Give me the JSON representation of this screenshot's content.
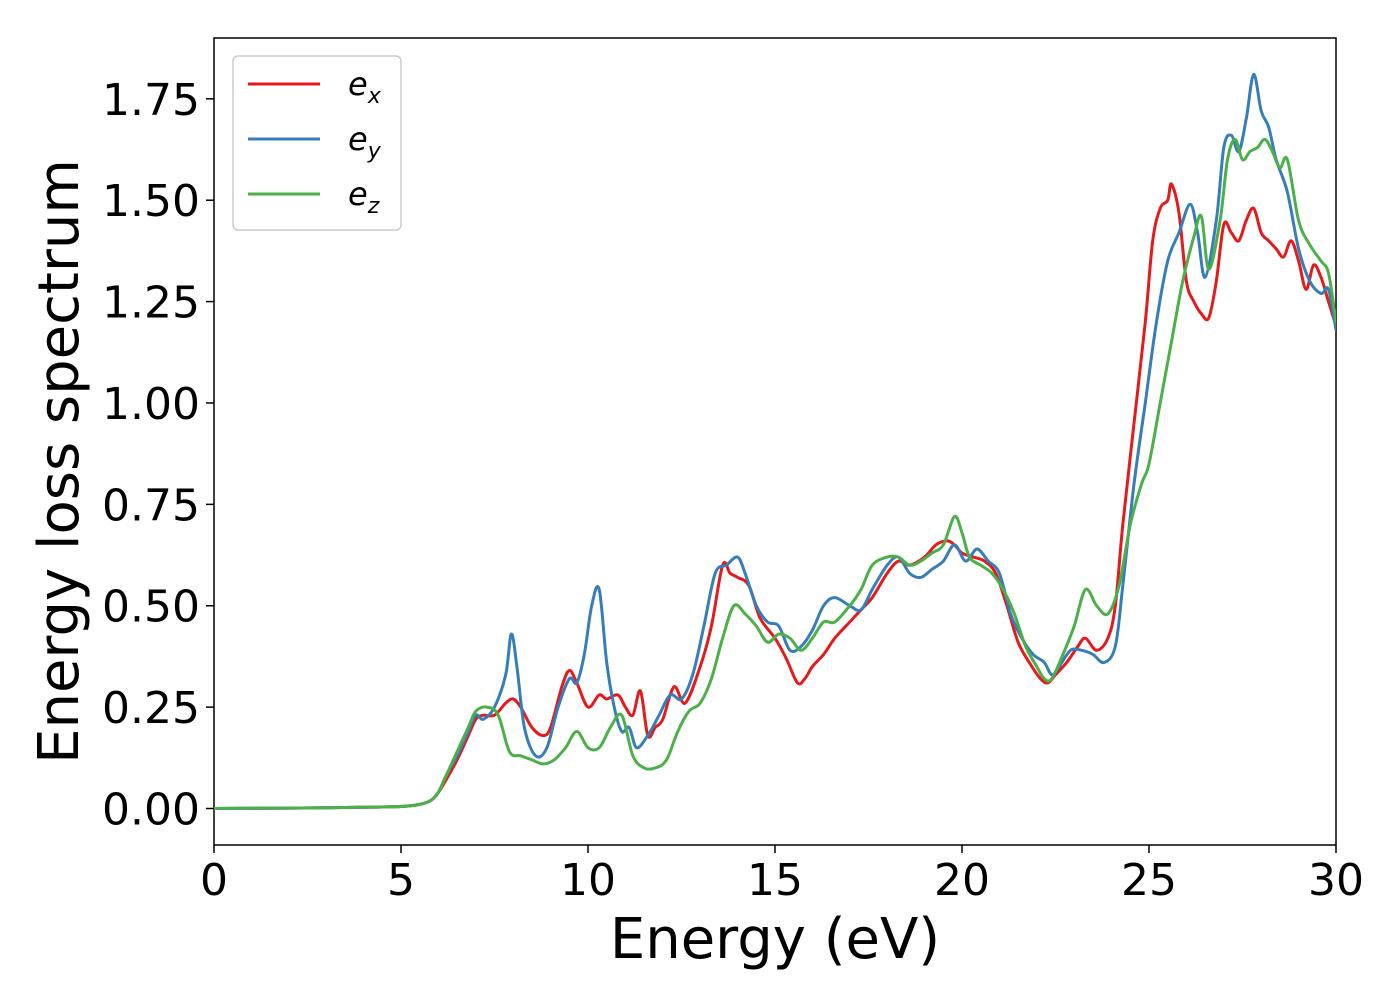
{
  "chart_data": {
    "type": "line",
    "xlabel": "Energy (eV)",
    "ylabel": "Energy loss spectrum",
    "xlim": [
      0,
      30
    ],
    "ylim": [
      -0.09,
      1.9
    ],
    "xticks": [
      "0",
      "5",
      "10",
      "15",
      "20",
      "25",
      "30"
    ],
    "yticks": [
      "0.00",
      "0.25",
      "0.50",
      "0.75",
      "1.00",
      "1.25",
      "1.50",
      "1.75"
    ],
    "grid": false,
    "legend_position": "top-left",
    "series": [
      {
        "name": "e_x",
        "legend_base": "e",
        "legend_sub": "x",
        "color": "#e41a1c",
        "x": [
          0,
          2,
          4,
          5,
          5.5,
          5.8,
          6,
          6.2,
          6.5,
          6.8,
          7,
          7.2,
          7.5,
          7.8,
          8,
          8.2,
          8.5,
          8.8,
          9,
          9.3,
          9.5,
          9.7,
          10,
          10.3,
          10.5,
          10.8,
          11,
          11.2,
          11.4,
          11.6,
          11.8,
          12,
          12.3,
          12.6,
          13,
          13.3,
          13.6,
          13.8,
          14,
          14.3,
          14.6,
          15,
          15.3,
          15.6,
          15.8,
          16,
          16.3,
          16.6,
          17,
          17.3,
          17.6,
          18,
          18.3,
          18.6,
          19,
          19.3,
          19.6,
          19.8,
          20,
          20.3,
          20.6,
          20.9,
          21.2,
          21.5,
          21.8,
          22.1,
          22.3,
          22.5,
          22.8,
          23.1,
          23.3,
          23.6,
          23.9,
          24.1,
          24.3,
          24.6,
          24.9,
          25.1,
          25.3,
          25.5,
          25.6,
          25.8,
          26,
          26.2,
          26.4,
          26.6,
          26.8,
          27,
          27.2,
          27.4,
          27.6,
          27.8,
          28,
          28.2,
          28.4,
          28.6,
          28.8,
          29,
          29.2,
          29.4,
          29.6,
          29.8,
          30
        ],
        "y": [
          0,
          0.001,
          0.003,
          0.005,
          0.01,
          0.02,
          0.04,
          0.07,
          0.12,
          0.18,
          0.22,
          0.23,
          0.23,
          0.26,
          0.27,
          0.25,
          0.2,
          0.18,
          0.2,
          0.3,
          0.34,
          0.31,
          0.25,
          0.28,
          0.27,
          0.28,
          0.25,
          0.23,
          0.29,
          0.18,
          0.2,
          0.22,
          0.3,
          0.26,
          0.35,
          0.45,
          0.6,
          0.58,
          0.57,
          0.55,
          0.47,
          0.42,
          0.37,
          0.31,
          0.32,
          0.35,
          0.38,
          0.42,
          0.46,
          0.49,
          0.52,
          0.58,
          0.61,
          0.6,
          0.62,
          0.65,
          0.66,
          0.65,
          0.63,
          0.62,
          0.61,
          0.58,
          0.5,
          0.41,
          0.36,
          0.32,
          0.31,
          0.33,
          0.36,
          0.4,
          0.42,
          0.39,
          0.42,
          0.5,
          0.7,
          0.95,
          1.2,
          1.4,
          1.48,
          1.5,
          1.54,
          1.47,
          1.3,
          1.25,
          1.22,
          1.21,
          1.3,
          1.44,
          1.42,
          1.4,
          1.45,
          1.48,
          1.42,
          1.4,
          1.38,
          1.36,
          1.4,
          1.35,
          1.28,
          1.34,
          1.31,
          1.25,
          1.19
        ]
      },
      {
        "name": "e_y",
        "legend_base": "e",
        "legend_sub": "y",
        "color": "#377eb8",
        "x": [
          0,
          2,
          4,
          5,
          5.5,
          5.8,
          6,
          6.2,
          6.5,
          6.8,
          7,
          7.2,
          7.5,
          7.8,
          7.95,
          8.1,
          8.3,
          8.6,
          8.9,
          9.2,
          9.5,
          9.7,
          9.9,
          10.1,
          10.3,
          10.5,
          10.7,
          10.9,
          11.1,
          11.3,
          11.6,
          11.9,
          12.2,
          12.5,
          12.8,
          13.1,
          13.4,
          13.7,
          14,
          14.2,
          14.5,
          14.8,
          15.1,
          15.4,
          15.7,
          16,
          16.3,
          16.6,
          17,
          17.3,
          17.6,
          18,
          18.3,
          18.6,
          18.9,
          19.2,
          19.5,
          19.8,
          20.1,
          20.4,
          20.7,
          21,
          21.3,
          21.6,
          21.9,
          22.2,
          22.4,
          22.6,
          22.9,
          23.2,
          23.5,
          23.8,
          24.1,
          24.3,
          24.6,
          24.9,
          25.2,
          25.5,
          25.8,
          26.1,
          26.3,
          26.5,
          26.8,
          27,
          27.2,
          27.4,
          27.6,
          27.8,
          28,
          28.2,
          28.4,
          28.7,
          29,
          29.3,
          29.6,
          29.8,
          30
        ],
        "y": [
          0,
          0.001,
          0.003,
          0.005,
          0.01,
          0.02,
          0.04,
          0.08,
          0.13,
          0.19,
          0.23,
          0.22,
          0.25,
          0.33,
          0.43,
          0.35,
          0.2,
          0.13,
          0.15,
          0.25,
          0.32,
          0.31,
          0.38,
          0.5,
          0.54,
          0.36,
          0.25,
          0.19,
          0.2,
          0.15,
          0.18,
          0.23,
          0.28,
          0.27,
          0.33,
          0.45,
          0.58,
          0.6,
          0.62,
          0.58,
          0.5,
          0.46,
          0.45,
          0.39,
          0.4,
          0.44,
          0.5,
          0.52,
          0.5,
          0.49,
          0.54,
          0.6,
          0.62,
          0.58,
          0.57,
          0.59,
          0.61,
          0.65,
          0.61,
          0.64,
          0.61,
          0.58,
          0.48,
          0.42,
          0.38,
          0.36,
          0.33,
          0.35,
          0.39,
          0.39,
          0.38,
          0.36,
          0.4,
          0.55,
          0.8,
          1.0,
          1.2,
          1.35,
          1.42,
          1.49,
          1.42,
          1.31,
          1.45,
          1.63,
          1.66,
          1.62,
          1.7,
          1.81,
          1.72,
          1.68,
          1.6,
          1.52,
          1.38,
          1.3,
          1.27,
          1.28,
          1.18
        ]
      },
      {
        "name": "e_z",
        "legend_base": "e",
        "legend_sub": "z",
        "color": "#4daf4a",
        "x": [
          0,
          2,
          4,
          5,
          5.5,
          5.8,
          6,
          6.2,
          6.5,
          6.8,
          7,
          7.3,
          7.6,
          7.9,
          8.2,
          8.5,
          8.8,
          9.1,
          9.4,
          9.7,
          10,
          10.3,
          10.6,
          10.9,
          11.2,
          11.5,
          11.8,
          12.1,
          12.4,
          12.7,
          13,
          13.3,
          13.6,
          13.9,
          14.2,
          14.5,
          14.8,
          15.1,
          15.4,
          15.7,
          16,
          16.3,
          16.6,
          17,
          17.3,
          17.6,
          18,
          18.3,
          18.6,
          18.9,
          19.2,
          19.5,
          19.8,
          20,
          20.2,
          20.5,
          20.8,
          21.1,
          21.4,
          21.7,
          22,
          22.2,
          22.4,
          22.7,
          23,
          23.3,
          23.6,
          23.9,
          24.2,
          24.5,
          24.8,
          25,
          25.3,
          25.6,
          25.9,
          26.2,
          26.4,
          26.6,
          26.9,
          27.1,
          27.3,
          27.5,
          27.7,
          27.9,
          28.1,
          28.3,
          28.5,
          28.7,
          29,
          29.3,
          29.6,
          29.8,
          30
        ],
        "y": [
          0,
          0.001,
          0.003,
          0.005,
          0.01,
          0.02,
          0.04,
          0.08,
          0.14,
          0.2,
          0.24,
          0.25,
          0.23,
          0.14,
          0.13,
          0.12,
          0.11,
          0.12,
          0.15,
          0.19,
          0.15,
          0.15,
          0.2,
          0.23,
          0.13,
          0.1,
          0.1,
          0.12,
          0.19,
          0.24,
          0.26,
          0.32,
          0.42,
          0.5,
          0.48,
          0.45,
          0.41,
          0.43,
          0.42,
          0.39,
          0.42,
          0.46,
          0.46,
          0.5,
          0.54,
          0.6,
          0.62,
          0.62,
          0.6,
          0.61,
          0.63,
          0.65,
          0.72,
          0.68,
          0.62,
          0.6,
          0.58,
          0.54,
          0.48,
          0.4,
          0.35,
          0.32,
          0.32,
          0.38,
          0.45,
          0.54,
          0.5,
          0.48,
          0.55,
          0.7,
          0.8,
          0.85,
          1.0,
          1.15,
          1.3,
          1.41,
          1.46,
          1.33,
          1.45,
          1.6,
          1.65,
          1.6,
          1.62,
          1.63,
          1.65,
          1.62,
          1.58,
          1.6,
          1.45,
          1.39,
          1.35,
          1.32,
          1.2
        ]
      }
    ]
  }
}
